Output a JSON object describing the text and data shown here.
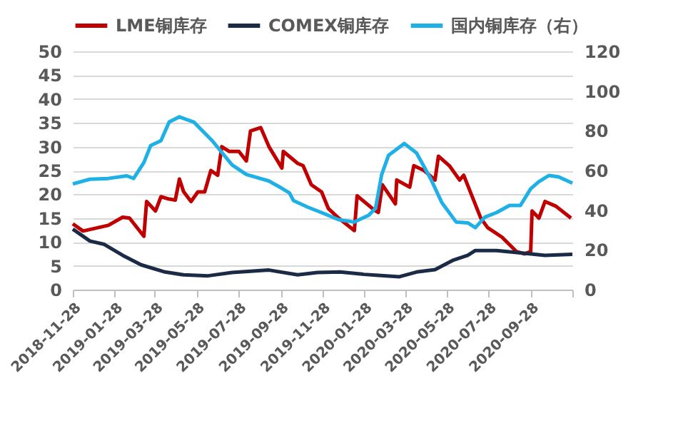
{
  "chart_data": {
    "type": "line",
    "legend": "top",
    "grid": "y",
    "line_style": "solid",
    "xlim": [
      "2018-11-28",
      "2020-11-28"
    ],
    "xticks": [
      "2018-11-28",
      "2019-01-28",
      "2019-03-28",
      "2019-05-28",
      "2019-07-28",
      "2019-09-28",
      "2019-11-28",
      "2020-01-28",
      "2020-03-28",
      "2020-05-28",
      "2020-07-28",
      "2020-09-28",
      {
        "value": "2020-11-28",
        "label": null
      }
    ],
    "ylim": [
      0,
      50
    ],
    "yticks": [
      0,
      5,
      10,
      15,
      20,
      25,
      30,
      35,
      40,
      45,
      50
    ],
    "y2lim": [
      0,
      120
    ],
    "y2ticks": [
      0,
      20,
      40,
      60,
      80,
      100,
      120
    ],
    "series": [
      {
        "name": "LME铜库存",
        "color": "#c00000",
        "x": [
          "2018-11-28",
          "2018-12-13",
          "2019-01-04",
          "2019-01-19",
          "2019-02-09",
          "2019-02-19",
          "2019-03-12",
          "2019-03-16",
          "2019-03-29",
          "2019-04-06",
          "2019-04-18",
          "2019-04-27",
          "2019-05-03",
          "2019-05-09",
          "2019-05-20",
          "2019-05-30",
          "2019-06-09",
          "2019-06-18",
          "2019-06-28",
          "2019-07-04",
          "2019-07-15",
          "2019-07-29",
          "2019-08-09",
          "2019-08-15",
          "2019-08-30",
          "2019-09-11",
          "2019-09-30",
          "2019-10-02",
          "2019-10-23",
          "2019-10-31",
          "2019-11-12",
          "2019-11-27",
          "2019-12-07",
          "2019-12-22",
          "2020-01-14",
          "2020-01-18",
          "2020-02-12",
          "2020-02-18",
          "2020-02-24",
          "2020-03-14",
          "2020-03-16",
          "2020-04-04",
          "2020-04-10",
          "2020-04-25",
          "2020-05-11",
          "2020-05-16",
          "2020-06-01",
          "2020-06-16",
          "2020-06-22",
          "2020-07-17",
          "2020-07-27",
          "2020-08-17",
          "2020-09-07",
          "2020-09-19",
          "2020-09-28",
          "2020-09-30",
          "2020-10-10",
          "2020-10-19",
          "2020-11-04",
          "2020-11-26"
        ],
        "values": [
          13.8,
          12.3,
          13,
          13.5,
          15.2,
          15,
          11.2,
          18.5,
          16.5,
          19.5,
          19,
          18.8,
          23.2,
          20.6,
          18.5,
          20.5,
          20.5,
          25,
          24,
          30,
          29,
          29,
          27,
          33.3,
          34,
          30,
          25.5,
          29,
          26.5,
          26,
          22,
          20.5,
          17,
          15,
          12.4,
          19.7,
          16.7,
          16.2,
          22,
          18,
          23,
          21.5,
          26,
          25,
          23,
          28,
          26,
          23,
          24,
          15,
          13,
          11,
          8,
          7.5,
          8,
          16.5,
          15,
          18.5,
          17.5,
          15
        ]
      },
      {
        "name": "COMEX铜库存",
        "color": "#1c2b45",
        "x": [
          "2018-11-28",
          "2018-12-23",
          "2019-01-13",
          "2019-02-09",
          "2019-03-08",
          "2019-04-12",
          "2019-05-09",
          "2019-06-14",
          "2019-07-19",
          "2019-09-11",
          "2019-10-23",
          "2019-11-21",
          "2019-12-24",
          "2020-01-28",
          "2020-02-18",
          "2020-03-20",
          "2020-04-14",
          "2020-05-11",
          "2020-06-07",
          "2020-06-28",
          "2020-07-09",
          "2020-08-09",
          "2020-09-13",
          "2020-10-19",
          "2020-11-28"
        ],
        "values": [
          12.7,
          10.2,
          9.5,
          7.2,
          5.2,
          3.7,
          3.1,
          2.9,
          3.6,
          4.1,
          3.1,
          3.6,
          3.7,
          3.2,
          3.0,
          2.7,
          3.7,
          4.2,
          6.2,
          7.2,
          8.2,
          8.2,
          7.7,
          7.2,
          7.4
        ]
      },
      {
        "name": "国内铜库存（右）",
        "color": "#1fb0e6",
        "axis": "y2",
        "x": [
          "2018-11-28",
          "2018-12-23",
          "2019-01-19",
          "2019-02-15",
          "2019-02-25",
          "2019-03-12",
          "2019-03-22",
          "2019-04-06",
          "2019-04-18",
          "2019-05-03",
          "2019-05-24",
          "2019-06-20",
          "2019-07-19",
          "2019-08-09",
          "2019-09-11",
          "2019-09-30",
          "2019-10-11",
          "2019-10-17",
          "2019-11-07",
          "2019-11-27",
          "2019-12-22",
          "2020-01-14",
          "2020-02-04",
          "2020-02-14",
          "2020-02-23",
          "2020-03-04",
          "2020-03-27",
          "2020-04-14",
          "2020-05-05",
          "2020-05-21",
          "2020-06-11",
          "2020-06-28",
          "2020-07-09",
          "2020-07-23",
          "2020-08-09",
          "2020-08-28",
          "2020-09-13",
          "2020-09-28",
          "2020-10-10",
          "2020-10-25",
          "2020-11-08",
          "2020-11-28"
        ],
        "values": [
          53.2,
          55.6,
          56,
          57.3,
          56,
          64,
          72.6,
          75,
          84.4,
          87,
          84.4,
          75,
          62.8,
          58,
          54.7,
          51,
          48.7,
          44.8,
          41.5,
          38.8,
          35.2,
          34,
          37.5,
          41,
          58,
          67.6,
          73.6,
          68.8,
          55.6,
          43.8,
          34,
          33.6,
          31.2,
          36.5,
          38.8,
          42.4,
          42.4,
          50.8,
          54.4,
          57.5,
          56.8,
          53.6
        ]
      }
    ]
  }
}
